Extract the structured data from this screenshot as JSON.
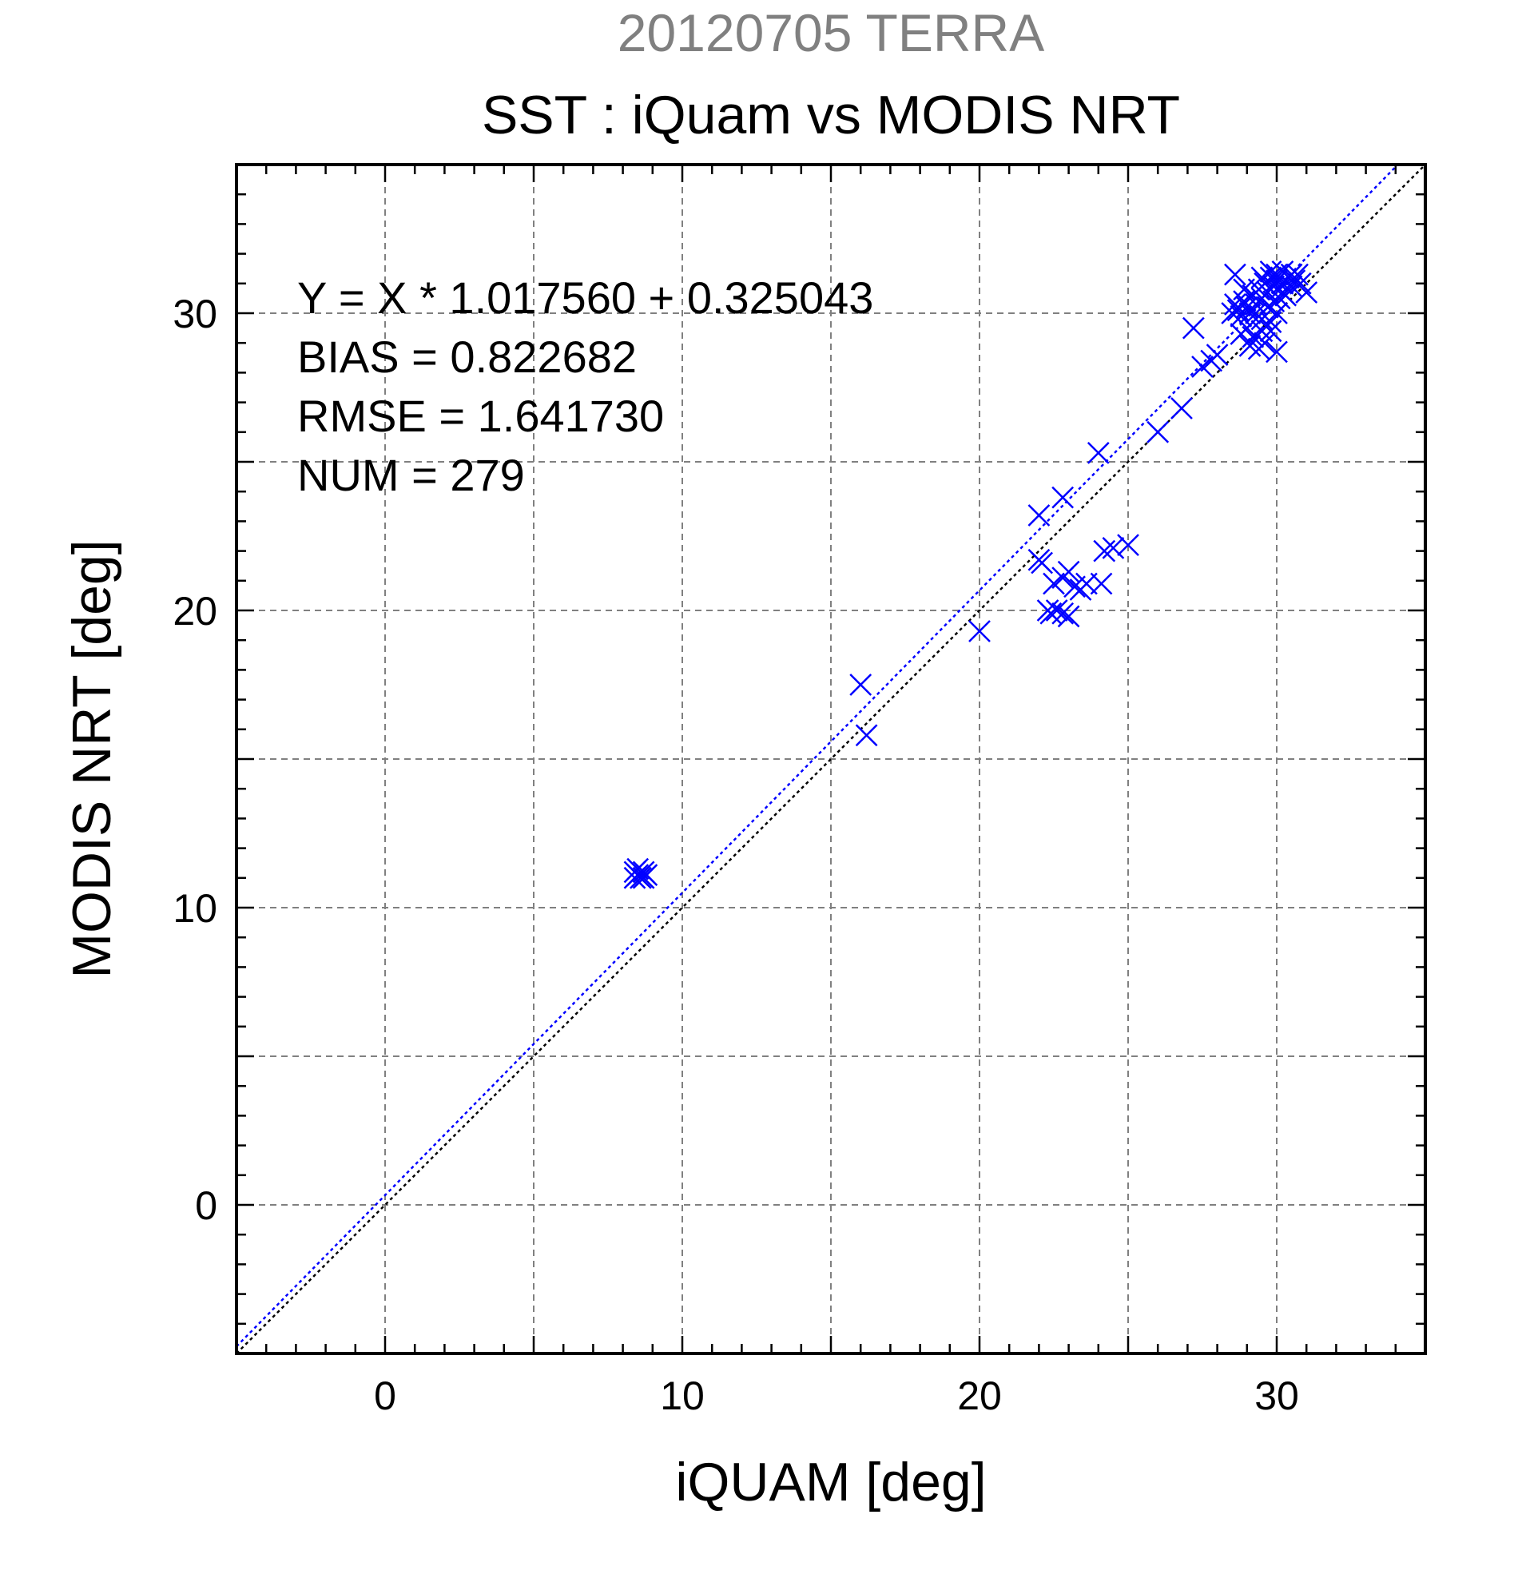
{
  "chart_data": {
    "type": "scatter",
    "title_top": "20120705 TERRA",
    "title": "SST : iQuam vs MODIS NRT",
    "xlabel": "iQUAM [deg]",
    "ylabel": "MODIS NRT [deg]",
    "xlim": [
      -5,
      35
    ],
    "ylim": [
      -5,
      35
    ],
    "xticks": [
      0,
      10,
      20,
      30
    ],
    "yticks": [
      0,
      10,
      20,
      30
    ],
    "grid": true,
    "annotations": [
      "Y = X * 1.017560 + 0.325043",
      "BIAS = 0.822682",
      "RMSE = 1.641730",
      "NUM = 279"
    ],
    "reference_lines": [
      {
        "slope": 1.0,
        "intercept": 0.0,
        "color": "#000000",
        "style": "dotted"
      },
      {
        "slope": 1.01756,
        "intercept": 0.325043,
        "color": "#0000ff",
        "style": "dotted"
      }
    ],
    "marker_color": "#0000ff",
    "series": [
      {
        "marker": "x",
        "points": [
          [
            8.4,
            11.0
          ],
          [
            8.5,
            11.1
          ],
          [
            8.6,
            11.0
          ],
          [
            8.7,
            11.2
          ],
          [
            8.8,
            11.1
          ],
          [
            8.5,
            11.3
          ],
          [
            8.4,
            11.2
          ],
          [
            8.7,
            11.0
          ],
          [
            16.0,
            17.5
          ],
          [
            16.2,
            15.8
          ],
          [
            20.0,
            19.3
          ],
          [
            22.0,
            23.2
          ],
          [
            22.8,
            23.8
          ],
          [
            24.0,
            25.3
          ],
          [
            22.0,
            21.7
          ],
          [
            22.1,
            21.6
          ],
          [
            22.5,
            20.9
          ],
          [
            22.8,
            21.1
          ],
          [
            23.0,
            21.3
          ],
          [
            22.3,
            20.0
          ],
          [
            22.4,
            19.9
          ],
          [
            22.6,
            20.0
          ],
          [
            22.8,
            19.9
          ],
          [
            23.0,
            19.8
          ],
          [
            23.2,
            20.8
          ],
          [
            23.4,
            20.7
          ],
          [
            23.6,
            20.9
          ],
          [
            24.1,
            20.9
          ],
          [
            24.2,
            22.0
          ],
          [
            24.5,
            22.1
          ],
          [
            25.0,
            22.2
          ],
          [
            26.0,
            26.0
          ],
          [
            26.8,
            26.8
          ],
          [
            27.5,
            28.2
          ],
          [
            27.8,
            28.4
          ],
          [
            28.0,
            28.6
          ],
          [
            27.2,
            29.5
          ],
          [
            28.5,
            30.0
          ],
          [
            28.6,
            30.3
          ],
          [
            28.7,
            30.1
          ],
          [
            28.8,
            29.9
          ],
          [
            28.9,
            30.4
          ],
          [
            29.0,
            30.2
          ],
          [
            29.1,
            30.0
          ],
          [
            29.2,
            30.6
          ],
          [
            29.3,
            30.3
          ],
          [
            29.4,
            30.8
          ],
          [
            29.5,
            30.5
          ],
          [
            29.6,
            31.0
          ],
          [
            29.7,
            30.7
          ],
          [
            29.8,
            31.2
          ],
          [
            29.9,
            30.9
          ],
          [
            30.0,
            31.1
          ],
          [
            30.1,
            30.8
          ],
          [
            30.2,
            31.0
          ],
          [
            30.3,
            30.6
          ],
          [
            30.4,
            31.2
          ],
          [
            30.5,
            30.9
          ],
          [
            30.6,
            31.1
          ],
          [
            30.8,
            31.0
          ],
          [
            31.0,
            30.7
          ],
          [
            29.0,
            29.5
          ],
          [
            29.2,
            29.2
          ],
          [
            29.4,
            28.8
          ],
          [
            29.6,
            29.0
          ],
          [
            29.8,
            29.4
          ],
          [
            30.0,
            28.7
          ],
          [
            28.6,
            31.3
          ],
          [
            28.9,
            30.8
          ],
          [
            29.3,
            30.0
          ],
          [
            29.5,
            29.8
          ],
          [
            29.7,
            30.2
          ],
          [
            29.9,
            30.4
          ],
          [
            30.0,
            30.0
          ],
          [
            30.1,
            30.5
          ],
          [
            30.0,
            31.3
          ],
          [
            29.8,
            31.4
          ],
          [
            29.5,
            31.2
          ],
          [
            30.2,
            31.4
          ],
          [
            30.5,
            31.3
          ],
          [
            30.7,
            31.3
          ],
          [
            28.8,
            29.3
          ],
          [
            29.1,
            28.9
          ],
          [
            29.5,
            29.4
          ],
          [
            29.8,
            29.7
          ]
        ]
      }
    ]
  }
}
